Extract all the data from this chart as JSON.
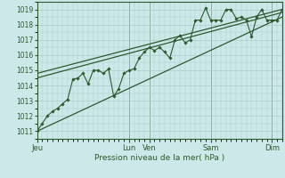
{
  "background_color": "#cce8e8",
  "grid_color": "#aacccc",
  "line_color": "#2d5a2d",
  "xlabel": "Pression niveau de la mer( hPa )",
  "ylim": [
    1010.5,
    1019.5
  ],
  "yticks": [
    1011,
    1012,
    1013,
    1014,
    1015,
    1016,
    1017,
    1018,
    1019
  ],
  "day_labels": [
    "Jeu",
    "Lun",
    "Ven",
    "Sam",
    "Dim"
  ],
  "day_positions": [
    0,
    18,
    22,
    34,
    46
  ],
  "xlim": [
    0,
    48
  ],
  "total_points": 49,
  "data_x": [
    0,
    1,
    2,
    3,
    4,
    5,
    6,
    7,
    8,
    9,
    10,
    11,
    12,
    13,
    14,
    15,
    16,
    17,
    18,
    19,
    20,
    21,
    22,
    23,
    24,
    25,
    26,
    27,
    28,
    29,
    30,
    31,
    32,
    33,
    34,
    35,
    36,
    37,
    38,
    39,
    40,
    41,
    42,
    43,
    44,
    45,
    46,
    47,
    48
  ],
  "data_y": [
    1011.0,
    1011.5,
    1012.0,
    1012.3,
    1012.5,
    1012.8,
    1013.1,
    1014.4,
    1014.5,
    1014.8,
    1014.1,
    1015.0,
    1015.0,
    1014.8,
    1015.1,
    1013.3,
    1013.8,
    1014.8,
    1015.0,
    1015.1,
    1015.8,
    1016.2,
    1016.5,
    1016.3,
    1016.5,
    1016.2,
    1015.8,
    1017.0,
    1017.3,
    1016.8,
    1017.0,
    1018.3,
    1018.3,
    1019.1,
    1018.3,
    1018.3,
    1018.3,
    1019.0,
    1019.0,
    1018.4,
    1018.5,
    1018.3,
    1017.2,
    1018.5,
    1019.0,
    1018.3,
    1018.3,
    1018.3,
    1019.0
  ],
  "trend1_x": [
    0,
    48
  ],
  "trend1_y": [
    1014.5,
    1018.8
  ],
  "trend2_x": [
    0,
    48
  ],
  "trend2_y": [
    1011.0,
    1018.5
  ],
  "trend3_x": [
    0,
    48
  ],
  "trend3_y": [
    1014.8,
    1019.0
  ]
}
